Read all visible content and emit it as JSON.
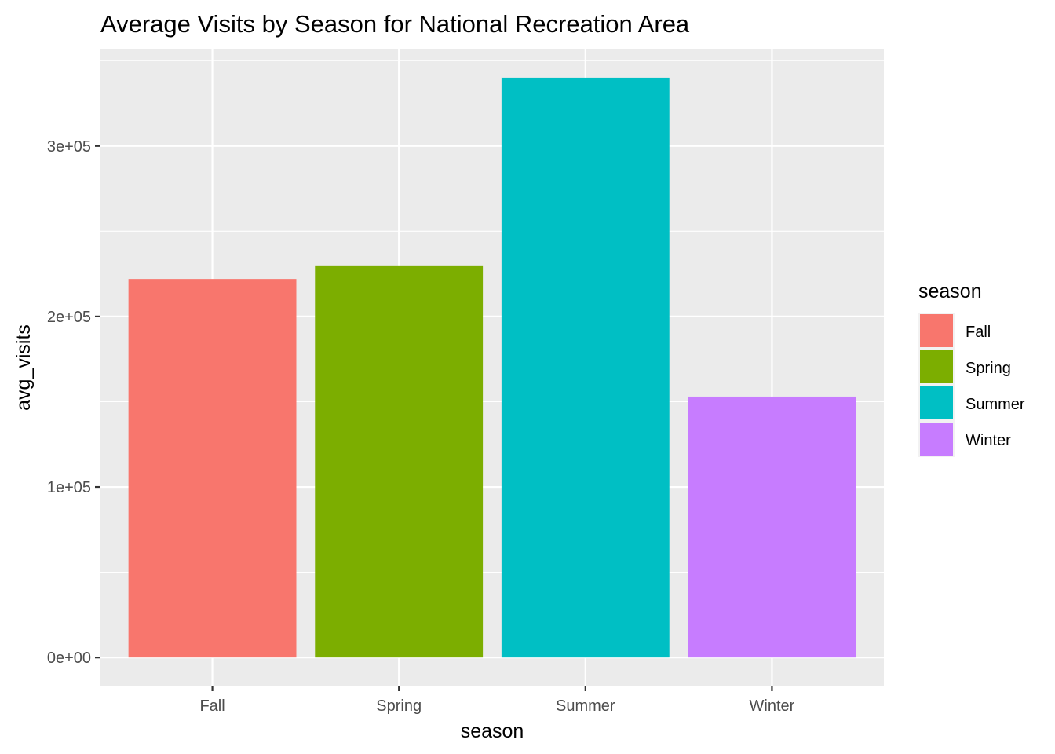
{
  "chart_data": {
    "type": "bar",
    "title": "Average Visits by Season for National Recreation Area",
    "xlabel": "season",
    "ylabel": "avg_visits",
    "categories": [
      "Fall",
      "Spring",
      "Summer",
      "Winter"
    ],
    "values": [
      222000,
      229500,
      340000,
      153000
    ],
    "colors": [
      "#F8766D",
      "#7CAE00",
      "#00BFC4",
      "#C77CFF"
    ],
    "ylim": [
      -16500,
      357000
    ],
    "yticks": [
      0,
      100000,
      200000,
      300000
    ],
    "yticklabels": [
      "0e+00",
      "1e+05",
      "2e+05",
      "3e+05"
    ],
    "grid": true,
    "panel_background": "#EBEBEB",
    "legend": {
      "title": "season",
      "position": "right",
      "items": [
        {
          "label": "Fall",
          "color": "#F8766D"
        },
        {
          "label": "Spring",
          "color": "#7CAE00"
        },
        {
          "label": "Summer",
          "color": "#00BFC4"
        },
        {
          "label": "Winter",
          "color": "#C77CFF"
        }
      ]
    }
  }
}
